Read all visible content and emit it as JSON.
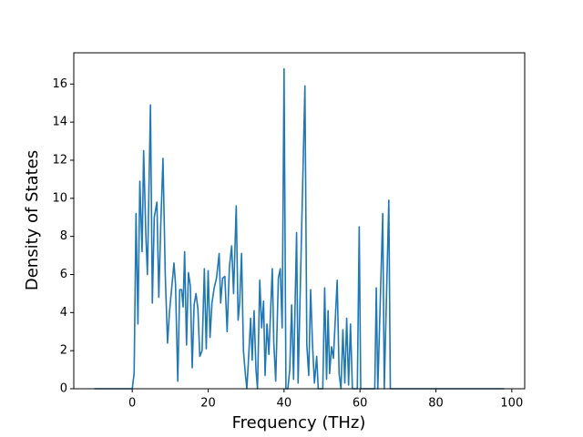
{
  "chart_data": {
    "type": "line",
    "xlabel": "Frequency (THz)",
    "ylabel": "Density of States",
    "xlim": [
      -15.4,
      103.4
    ],
    "ylim": [
      0,
      17.64
    ],
    "xticks": [
      0,
      20,
      40,
      60,
      80,
      100
    ],
    "yticks": [
      0,
      2,
      4,
      6,
      8,
      10,
      12,
      14,
      16
    ],
    "series": [
      {
        "color": "#1f77b4",
        "x": [
          -10,
          0,
          0.5,
          1,
          1.5,
          2,
          2.6,
          3,
          3.6,
          4,
          4.8,
          5.3,
          5.8,
          6.5,
          7,
          7.5,
          8.1,
          8.7,
          9.3,
          9.8,
          11,
          11.4,
          12,
          12.5,
          13,
          13.4,
          13.8,
          14.3,
          14.8,
          15.3,
          15.8,
          16.3,
          16.8,
          17.3,
          17.8,
          18.4,
          19,
          19.5,
          20,
          20.5,
          21,
          21.6,
          22.2,
          22.9,
          23.3,
          23.8,
          24.4,
          25,
          25.6,
          26.2,
          26.7,
          27.4,
          27.9,
          28.3,
          28.8,
          29.3,
          29.7,
          30.2,
          30.7,
          31.2,
          31.6,
          32.1,
          32.6,
          33,
          33.6,
          34.1,
          34.6,
          35,
          35.5,
          36,
          36.9,
          37.3,
          37.8,
          38.5,
          39,
          39.5,
          40,
          40.5,
          41,
          41.5,
          42,
          42.5,
          43.3,
          43.7,
          44.2,
          45.5,
          46,
          46.5,
          47,
          47.5,
          48,
          48.6,
          49,
          50.2,
          50.7,
          51.2,
          51.6,
          52,
          52.5,
          53,
          54,
          54.5,
          55,
          55.5,
          56,
          56.5,
          57,
          57.5,
          58,
          59.3,
          59.8,
          60.2,
          63.9,
          64.3,
          64.7,
          66,
          66.4,
          67.6,
          68,
          98
        ],
        "values": [
          0,
          0,
          0.8,
          9.2,
          3.4,
          10.9,
          7.2,
          12.5,
          8,
          6,
          14.9,
          4.5,
          9,
          9.8,
          4.8,
          8.5,
          12.1,
          6,
          2.4,
          4,
          6.6,
          5.5,
          0.4,
          5.2,
          5.2,
          4.3,
          7.2,
          2.3,
          6.1,
          5.4,
          1.1,
          4.4,
          5,
          4.2,
          1.7,
          2,
          6.3,
          2.1,
          6.2,
          2.7,
          4.5,
          5.3,
          5.8,
          7.1,
          4.5,
          5.8,
          5.9,
          3,
          6.4,
          7.5,
          5,
          9.6,
          3.6,
          4.5,
          7.1,
          2,
          1,
          0,
          1.8,
          3.7,
          1.5,
          4.1,
          1,
          0,
          5.7,
          3.2,
          4.6,
          0.7,
          3.4,
          1.8,
          6.3,
          2.4,
          0.4,
          5.8,
          6.3,
          3.2,
          16.8,
          0,
          0,
          1,
          4.4,
          0.5,
          8.2,
          0.3,
          4.6,
          15.9,
          2.3,
          0.7,
          5.2,
          2.3,
          0.3,
          1.7,
          0,
          0,
          5.3,
          0.5,
          4.1,
          0.8,
          2.2,
          1.6,
          5.7,
          0.8,
          0,
          3.1,
          0.3,
          3.7,
          0.2,
          3.4,
          0,
          0,
          8.5,
          0,
          0,
          5.3,
          0,
          9.2,
          0,
          9.9,
          0,
          0
        ]
      }
    ]
  }
}
